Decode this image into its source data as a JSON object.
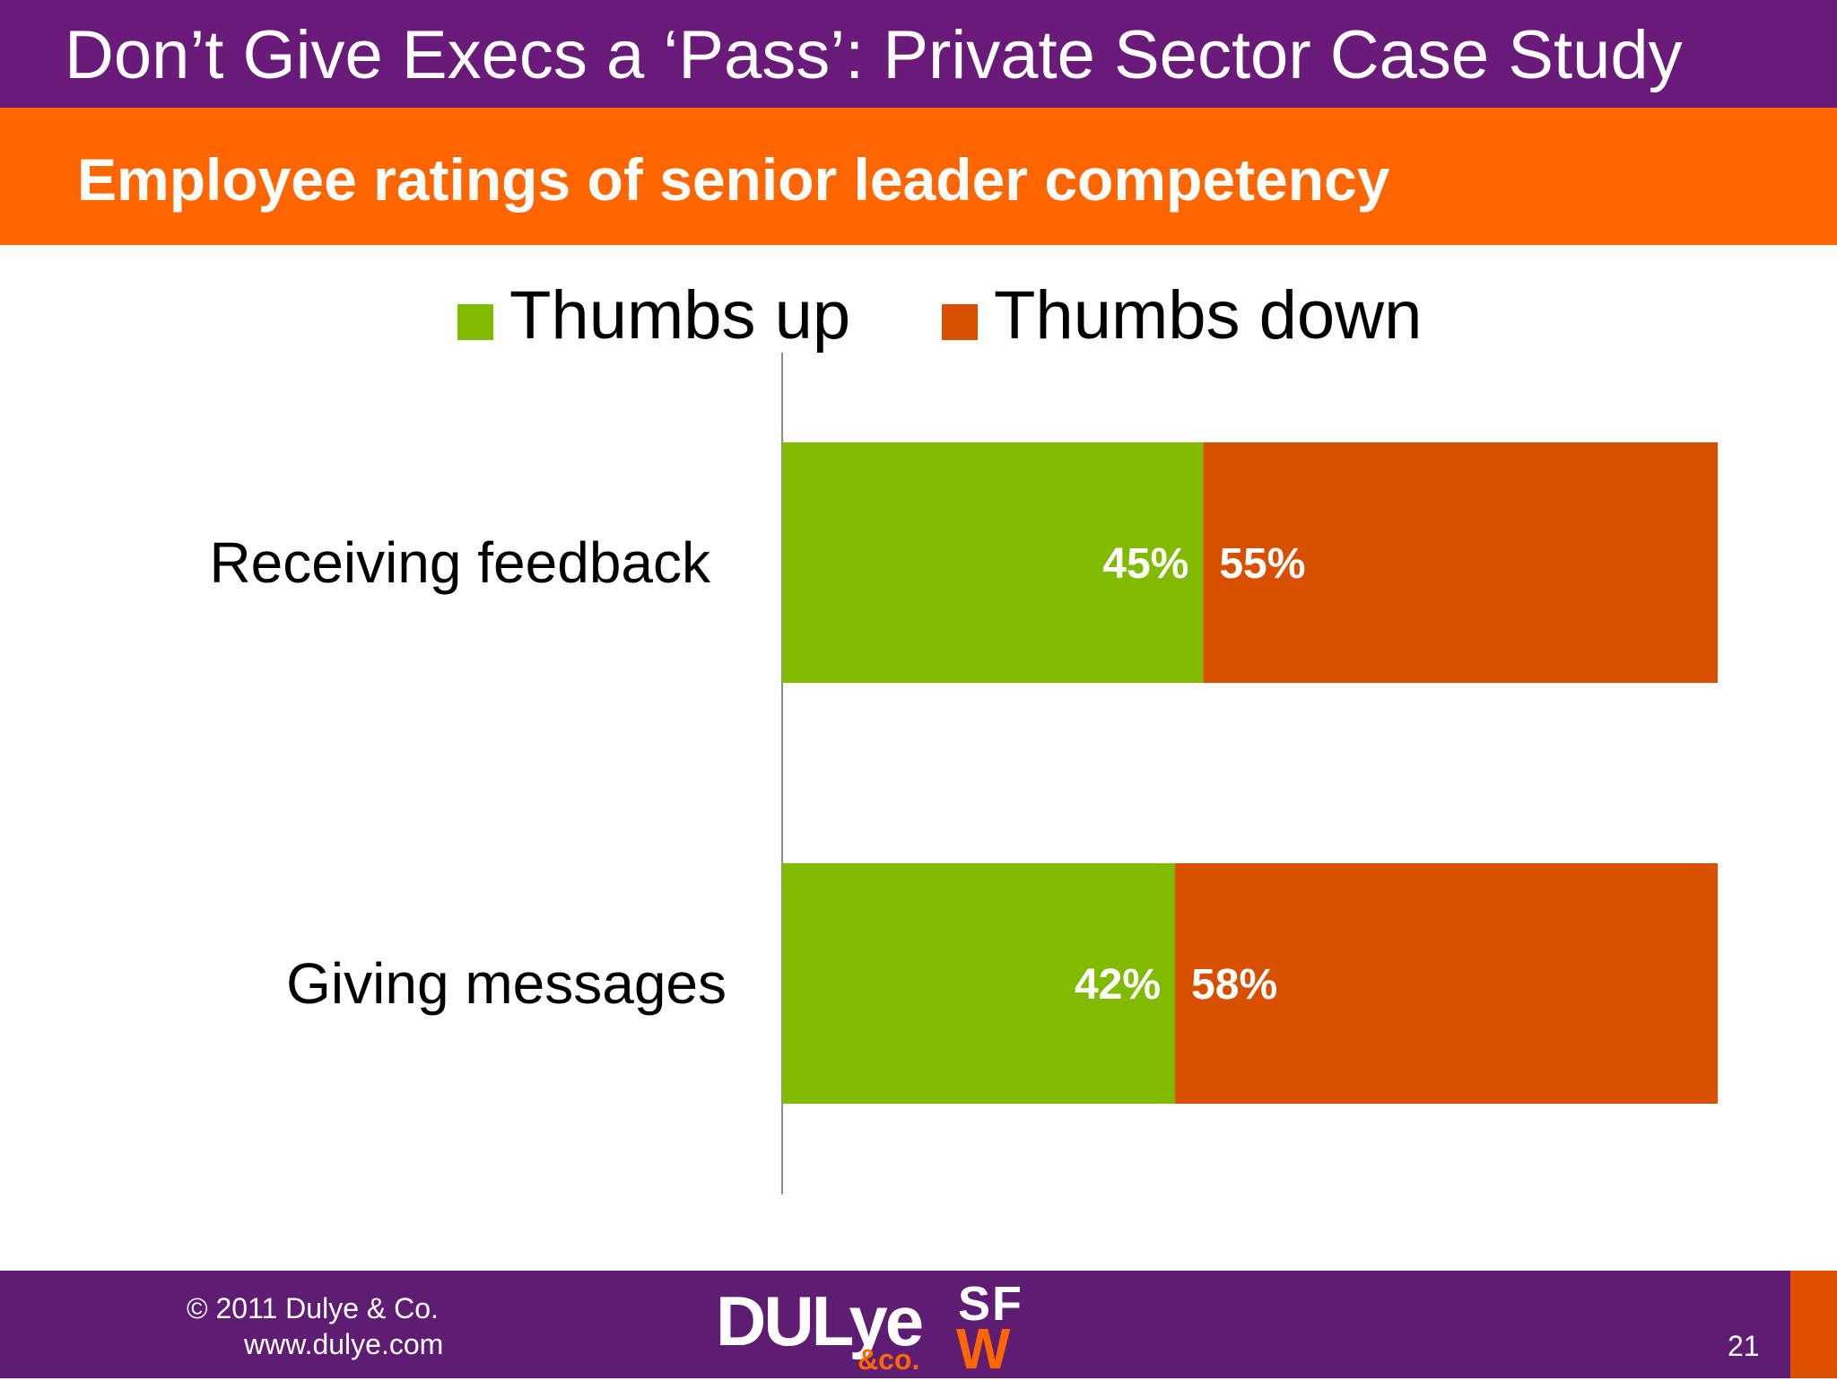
{
  "slide": {
    "title": "Don’t Give Execs a ‘Pass’: Private Sector Case Study",
    "subtitle": "Employee ratings of senior leader competency"
  },
  "chart_data": {
    "type": "bar",
    "orientation": "horizontal",
    "stacked": true,
    "categories": [
      "Receiving feedback",
      "Giving messages"
    ],
    "series": [
      {
        "name": "Thumbs up",
        "values": [
          45,
          42
        ],
        "labels": [
          "45%",
          "42%"
        ],
        "color": "#80bb00"
      },
      {
        "name": "Thumbs down",
        "values": [
          55,
          58
        ],
        "labels": [
          "55%",
          "58%"
        ],
        "color": "#d94f00"
      }
    ],
    "xlim": [
      0,
      100
    ],
    "unit": "%",
    "legend": "top",
    "grid": false
  },
  "footer": {
    "copyright": "© 2011 Dulye & Co.",
    "website": "www.dulye.com",
    "page_number": "21",
    "logo_main": "DULye",
    "logo_sub": "&co.",
    "logo2_top": "SF",
    "logo2_bottom": "W"
  }
}
